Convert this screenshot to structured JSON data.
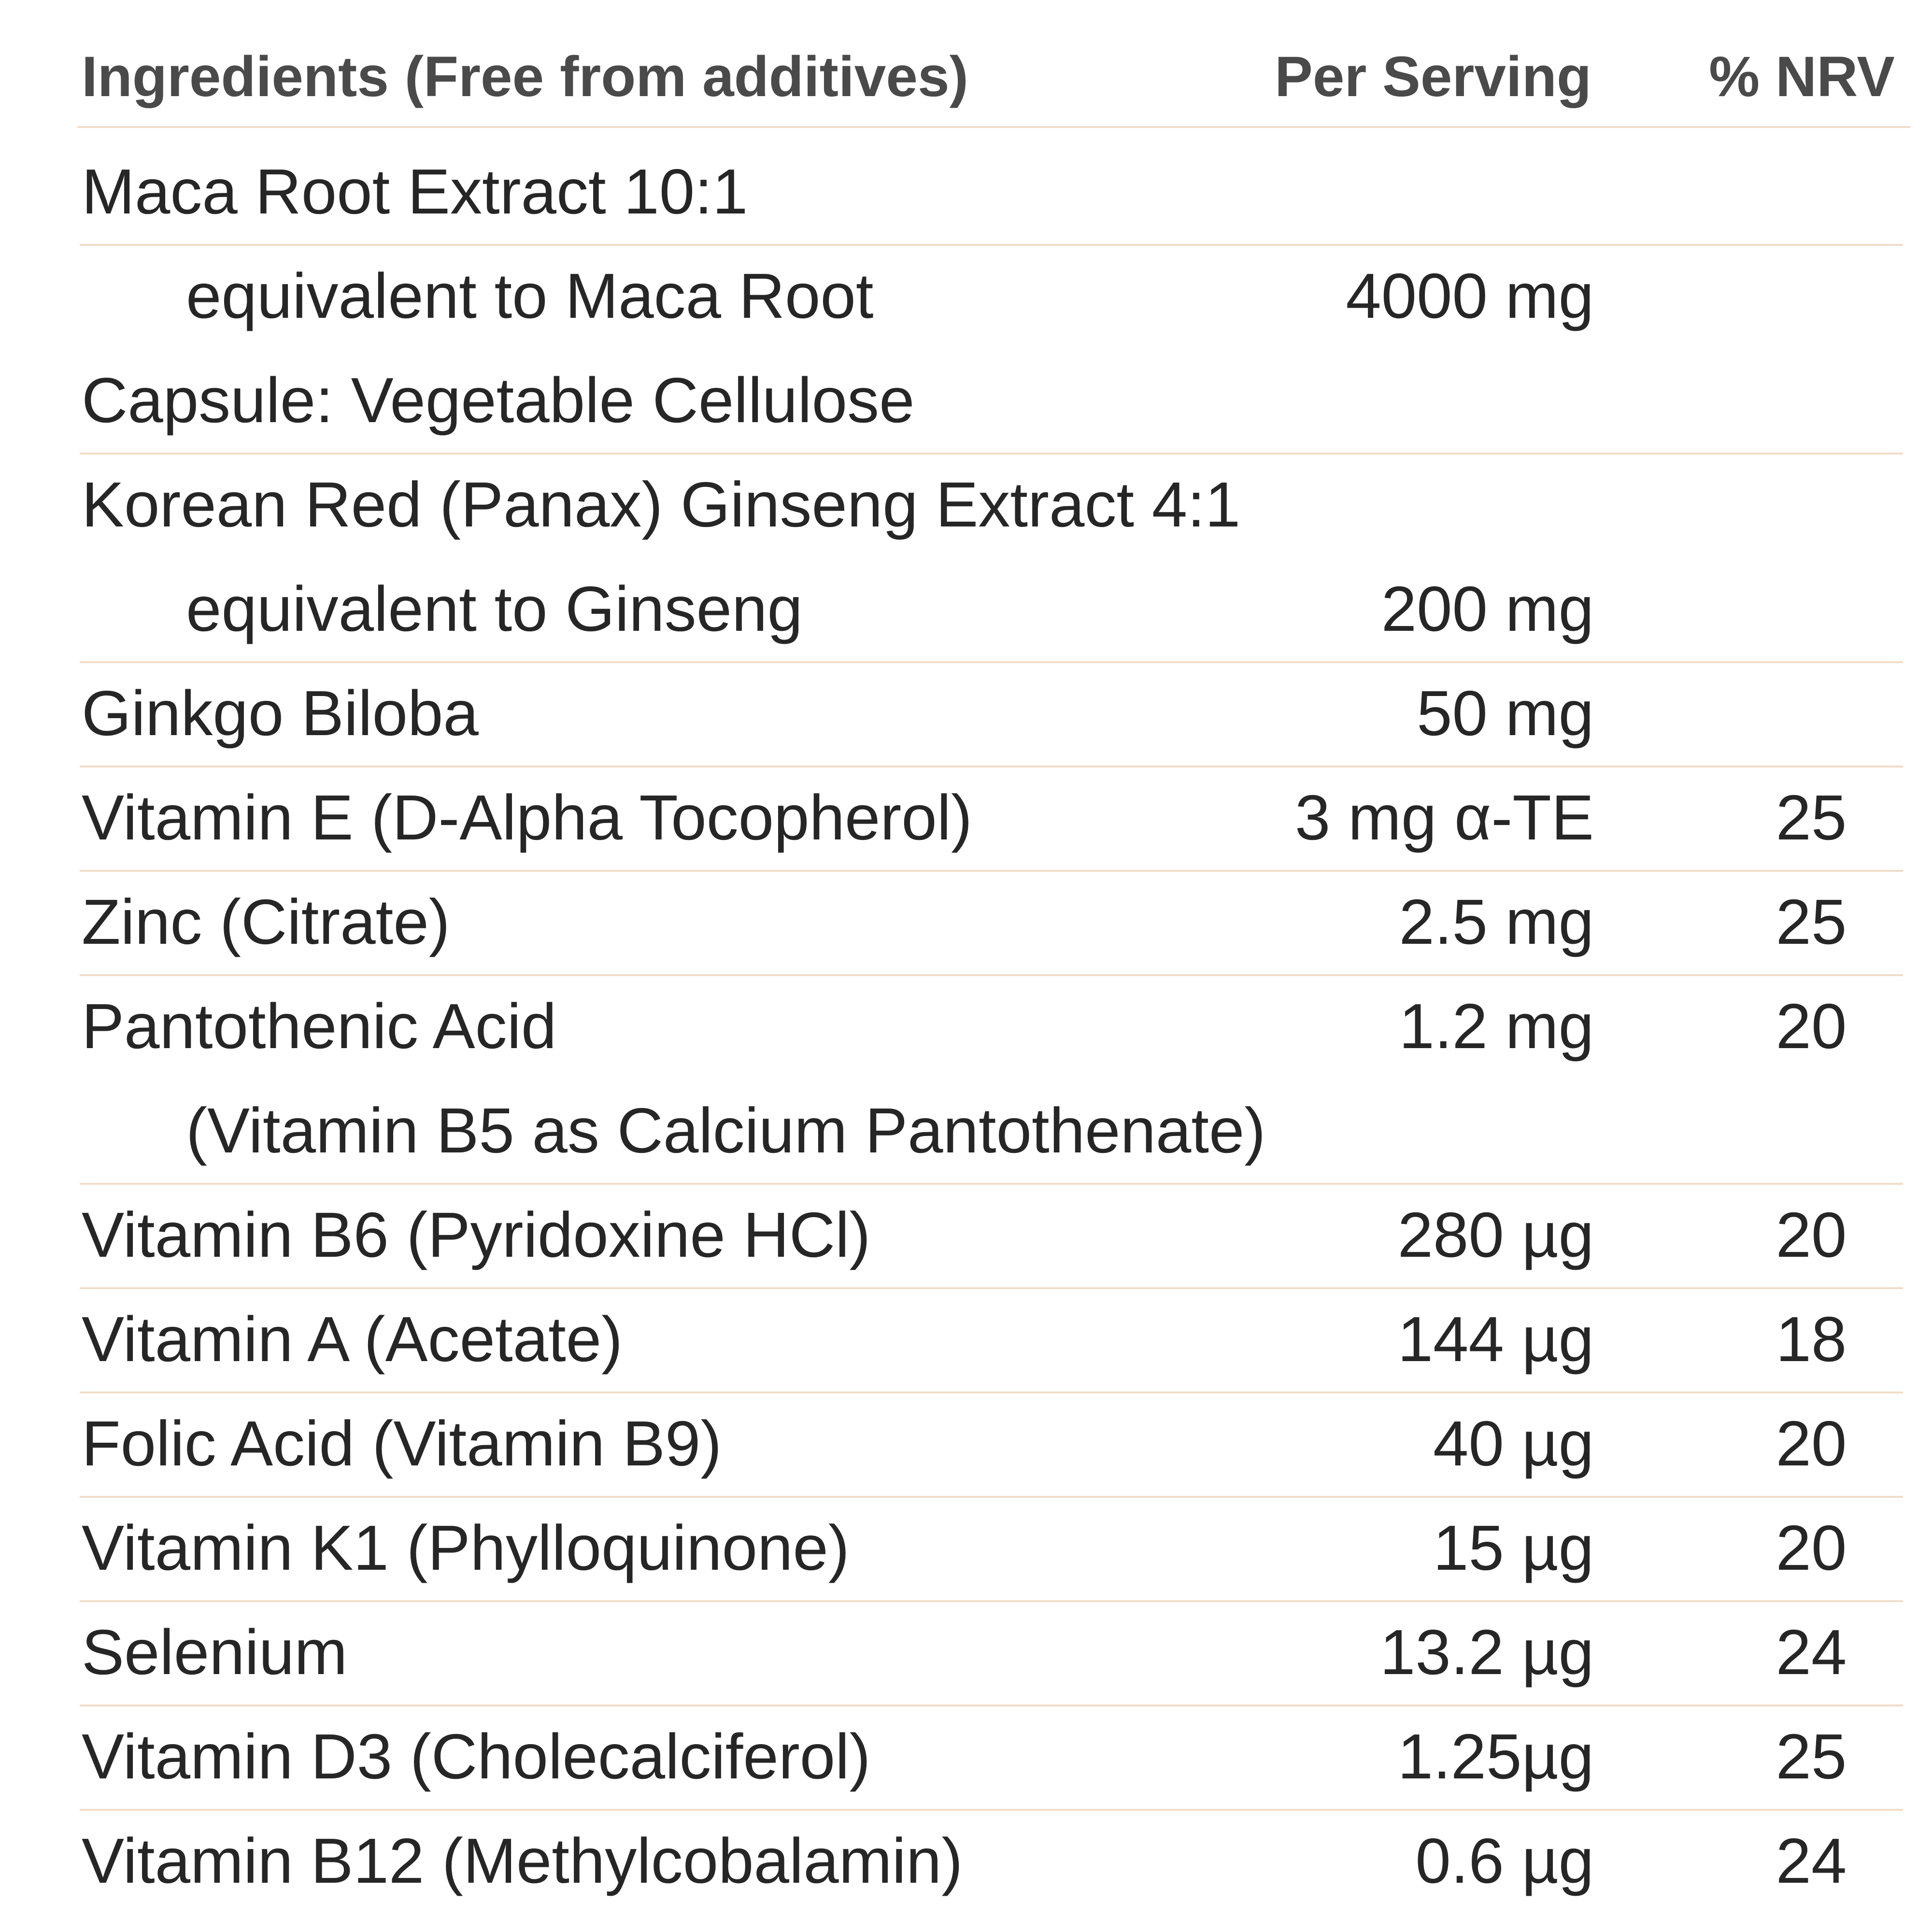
{
  "header": {
    "ingredients": "Ingredients (Free from additives)",
    "per_serving": "Per Serving",
    "nrv": "% NRV"
  },
  "rows": [
    {
      "name": "Maca Root Extract 10:1"
    },
    {
      "name": "equivalent to Maca Root",
      "amount": "4000 mg"
    },
    {
      "name": "Capsule: Vegetable Cellulose"
    },
    {
      "name": "Korean Red (Panax) Ginseng Extract 4:1"
    },
    {
      "name": "equivalent to Ginseng",
      "amount": "200 mg"
    },
    {
      "name": "Ginkgo Biloba",
      "amount": "50 mg"
    },
    {
      "name": "Vitamin E (D-Alpha Tocopherol)",
      "amount": "3 mg α-TE",
      "nrv": "25"
    },
    {
      "name": "Zinc (Citrate)",
      "amount": "2.5 mg",
      "nrv": "25"
    },
    {
      "name": "Pantothenic Acid",
      "amount": "1.2 mg",
      "nrv": "20"
    },
    {
      "name": "(Vitamin B5 as Calcium Pantothenate)"
    },
    {
      "name": "Vitamin B6 (Pyridoxine HCl)",
      "amount": "280 µg",
      "nrv": "20"
    },
    {
      "name": "Vitamin A (Acetate)",
      "amount": "144 µg",
      "nrv": "18"
    },
    {
      "name": "Folic Acid (Vitamin B9)",
      "amount": "40 µg",
      "nrv": "20"
    },
    {
      "name": "Vitamin K1 (Phylloquinone)",
      "amount": "15 µg",
      "nrv": "20"
    },
    {
      "name": "Selenium",
      "amount": "13.2 µg",
      "nrv": "24"
    },
    {
      "name": "Vitamin D3 (Cholecalciferol)",
      "amount": "1.25µg",
      "nrv": "25"
    },
    {
      "name": "Vitamin B12 (Methylcobalamin)",
      "amount": "0.6 µg",
      "nrv": "24"
    }
  ]
}
